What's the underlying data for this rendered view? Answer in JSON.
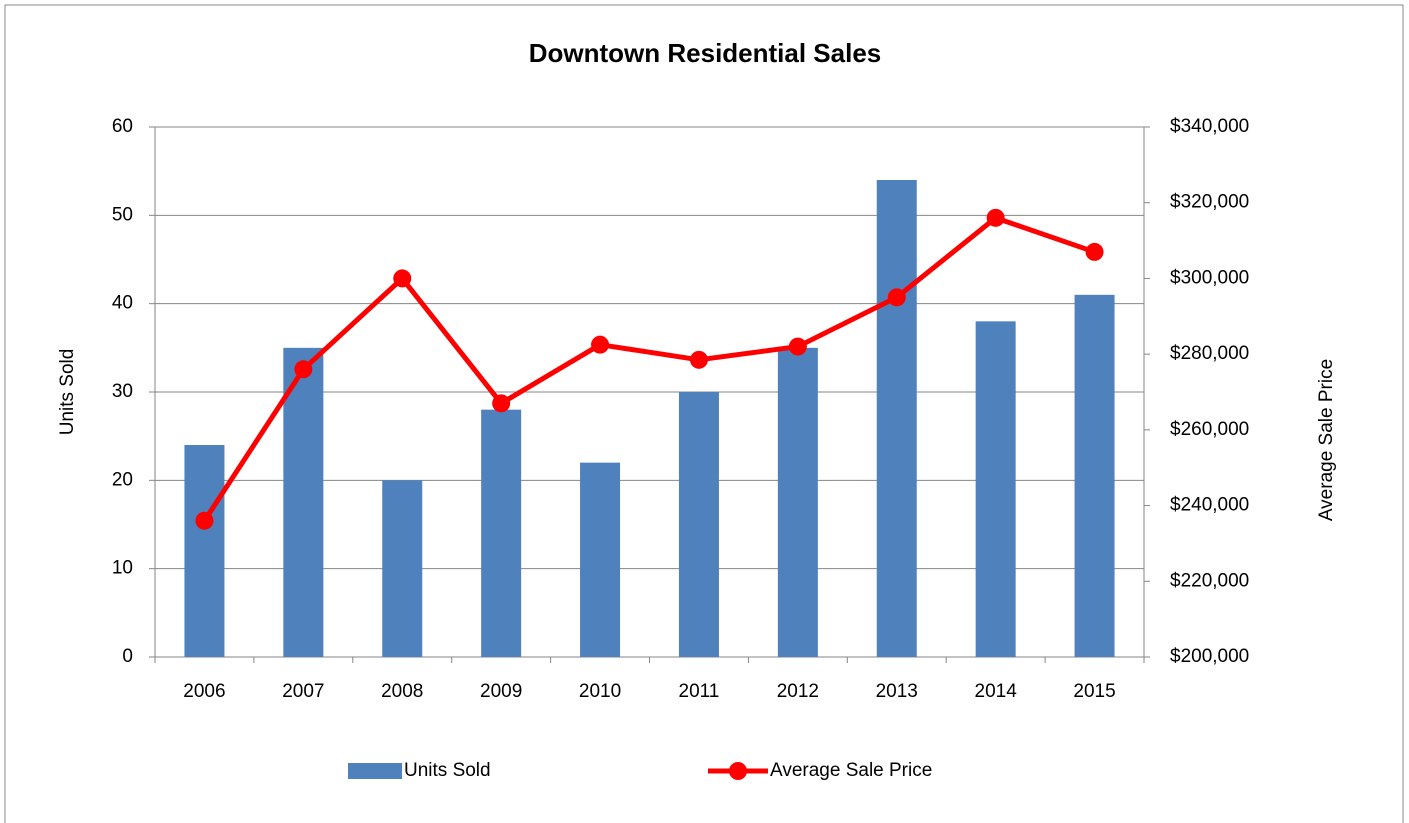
{
  "chart_data": {
    "type": "bar_line",
    "title": "Downtown Residential Sales",
    "categories": [
      "2006",
      "2007",
      "2008",
      "2009",
      "2010",
      "2011",
      "2012",
      "2013",
      "2014",
      "2015"
    ],
    "series": [
      {
        "name": "Units Sold",
        "color": "#4f81bd",
        "type": "bar",
        "values": [
          24,
          35,
          20,
          28,
          22,
          30,
          35,
          54,
          38,
          41
        ]
      },
      {
        "name": "Average Sale Price",
        "color": "#ff0000",
        "type": "line",
        "axis": "y2",
        "values": [
          236000,
          276000,
          300000,
          267000,
          282500,
          278500,
          282000,
          295000,
          316000,
          307000
        ]
      }
    ],
    "ylabel": "Units Sold",
    "y2label": "Average Sale Price",
    "ylim": [
      0,
      60
    ],
    "yticks": [
      0,
      10,
      20,
      30,
      40,
      50,
      60
    ],
    "y2lim": [
      200000,
      340000
    ],
    "y2ticks": [
      {
        "value": 200000,
        "label": "$200,000"
      },
      {
        "value": 220000,
        "label": "$220,000"
      },
      {
        "value": 240000,
        "label": "$240,000"
      },
      {
        "value": 260000,
        "label": "$260,000"
      },
      {
        "value": 280000,
        "label": "$280,000"
      },
      {
        "value": 300000,
        "label": "$300,000"
      },
      {
        "value": 320000,
        "label": "$320,000"
      },
      {
        "value": 340000,
        "label": "$340,000"
      }
    ],
    "grid": true,
    "legend": "bottom"
  }
}
